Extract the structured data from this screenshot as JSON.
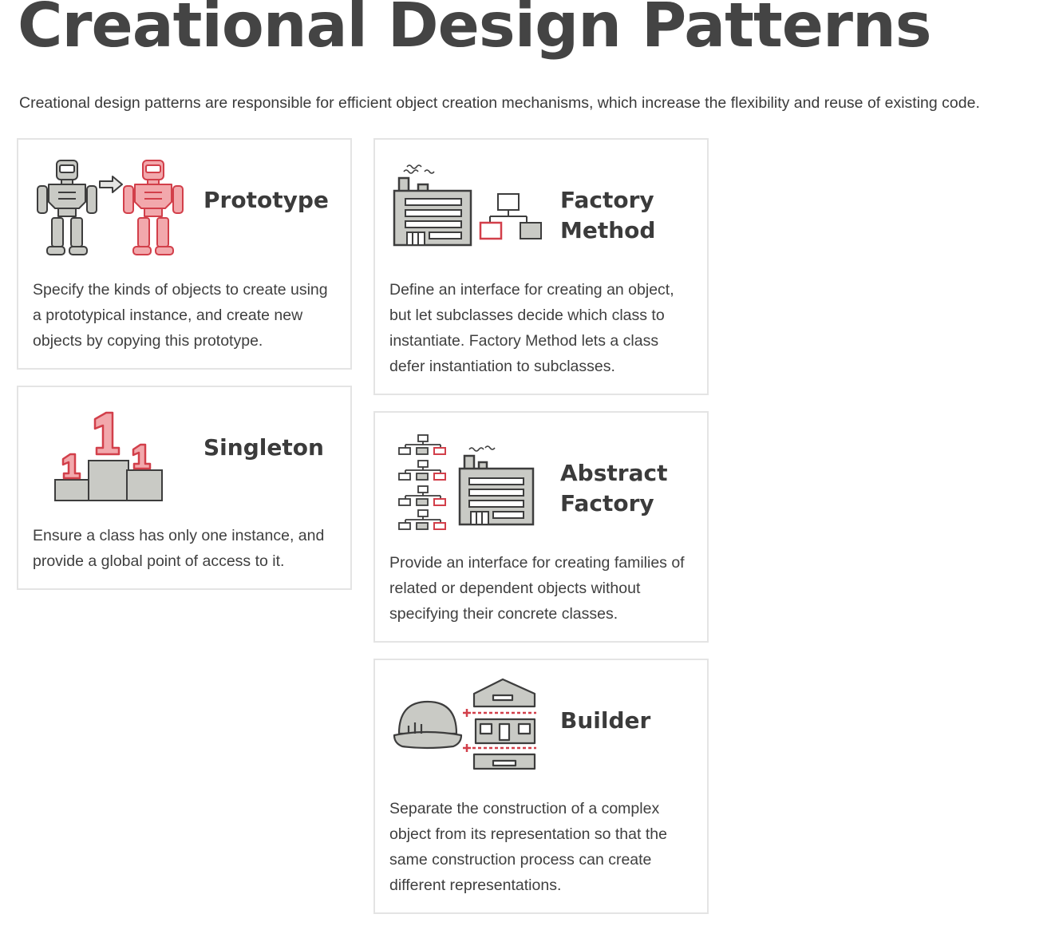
{
  "page": {
    "title": "Creational Design Patterns",
    "intro": "Creational design patterns are responsible for efficient object creation mechanisms, which increase the flexibility and reuse of existing code."
  },
  "patterns": {
    "prototype": {
      "name": "Prototype",
      "description": "Specify the kinds of objects to create using a prototypical instance, and create new objects by copying this prototype.",
      "icon": "robots-cloning-icon"
    },
    "singleton": {
      "name": "Singleton",
      "description": "Ensure a class has only one instance, and provide a global point of access to it.",
      "icon": "podium-icon"
    },
    "factory_method": {
      "name_line1": "Factory",
      "name_line2": "Method",
      "description": "Define an interface for creating an object, but let subclasses decide which class to instantiate. Factory Method lets a class defer instantiation to subclasses.",
      "icon": "factory-icon"
    },
    "abstract_factory": {
      "name_line1": "Abstract",
      "name_line2": "Factory",
      "description": "Provide an interface for creating families of related or dependent objects without specifying their concrete classes.",
      "icon": "abstract-factory-icon"
    },
    "builder": {
      "name": "Builder",
      "description": "Separate the construction of a complex object from its representation so that the same construction process can create different representations.",
      "icon": "builder-icon"
    }
  },
  "colors": {
    "accent": "#d23f4a",
    "accent_light": "#eea1a5",
    "gray_fill": "#c9cac5",
    "outline": "#3d3d3d",
    "card_border": "#e4e4e4"
  }
}
